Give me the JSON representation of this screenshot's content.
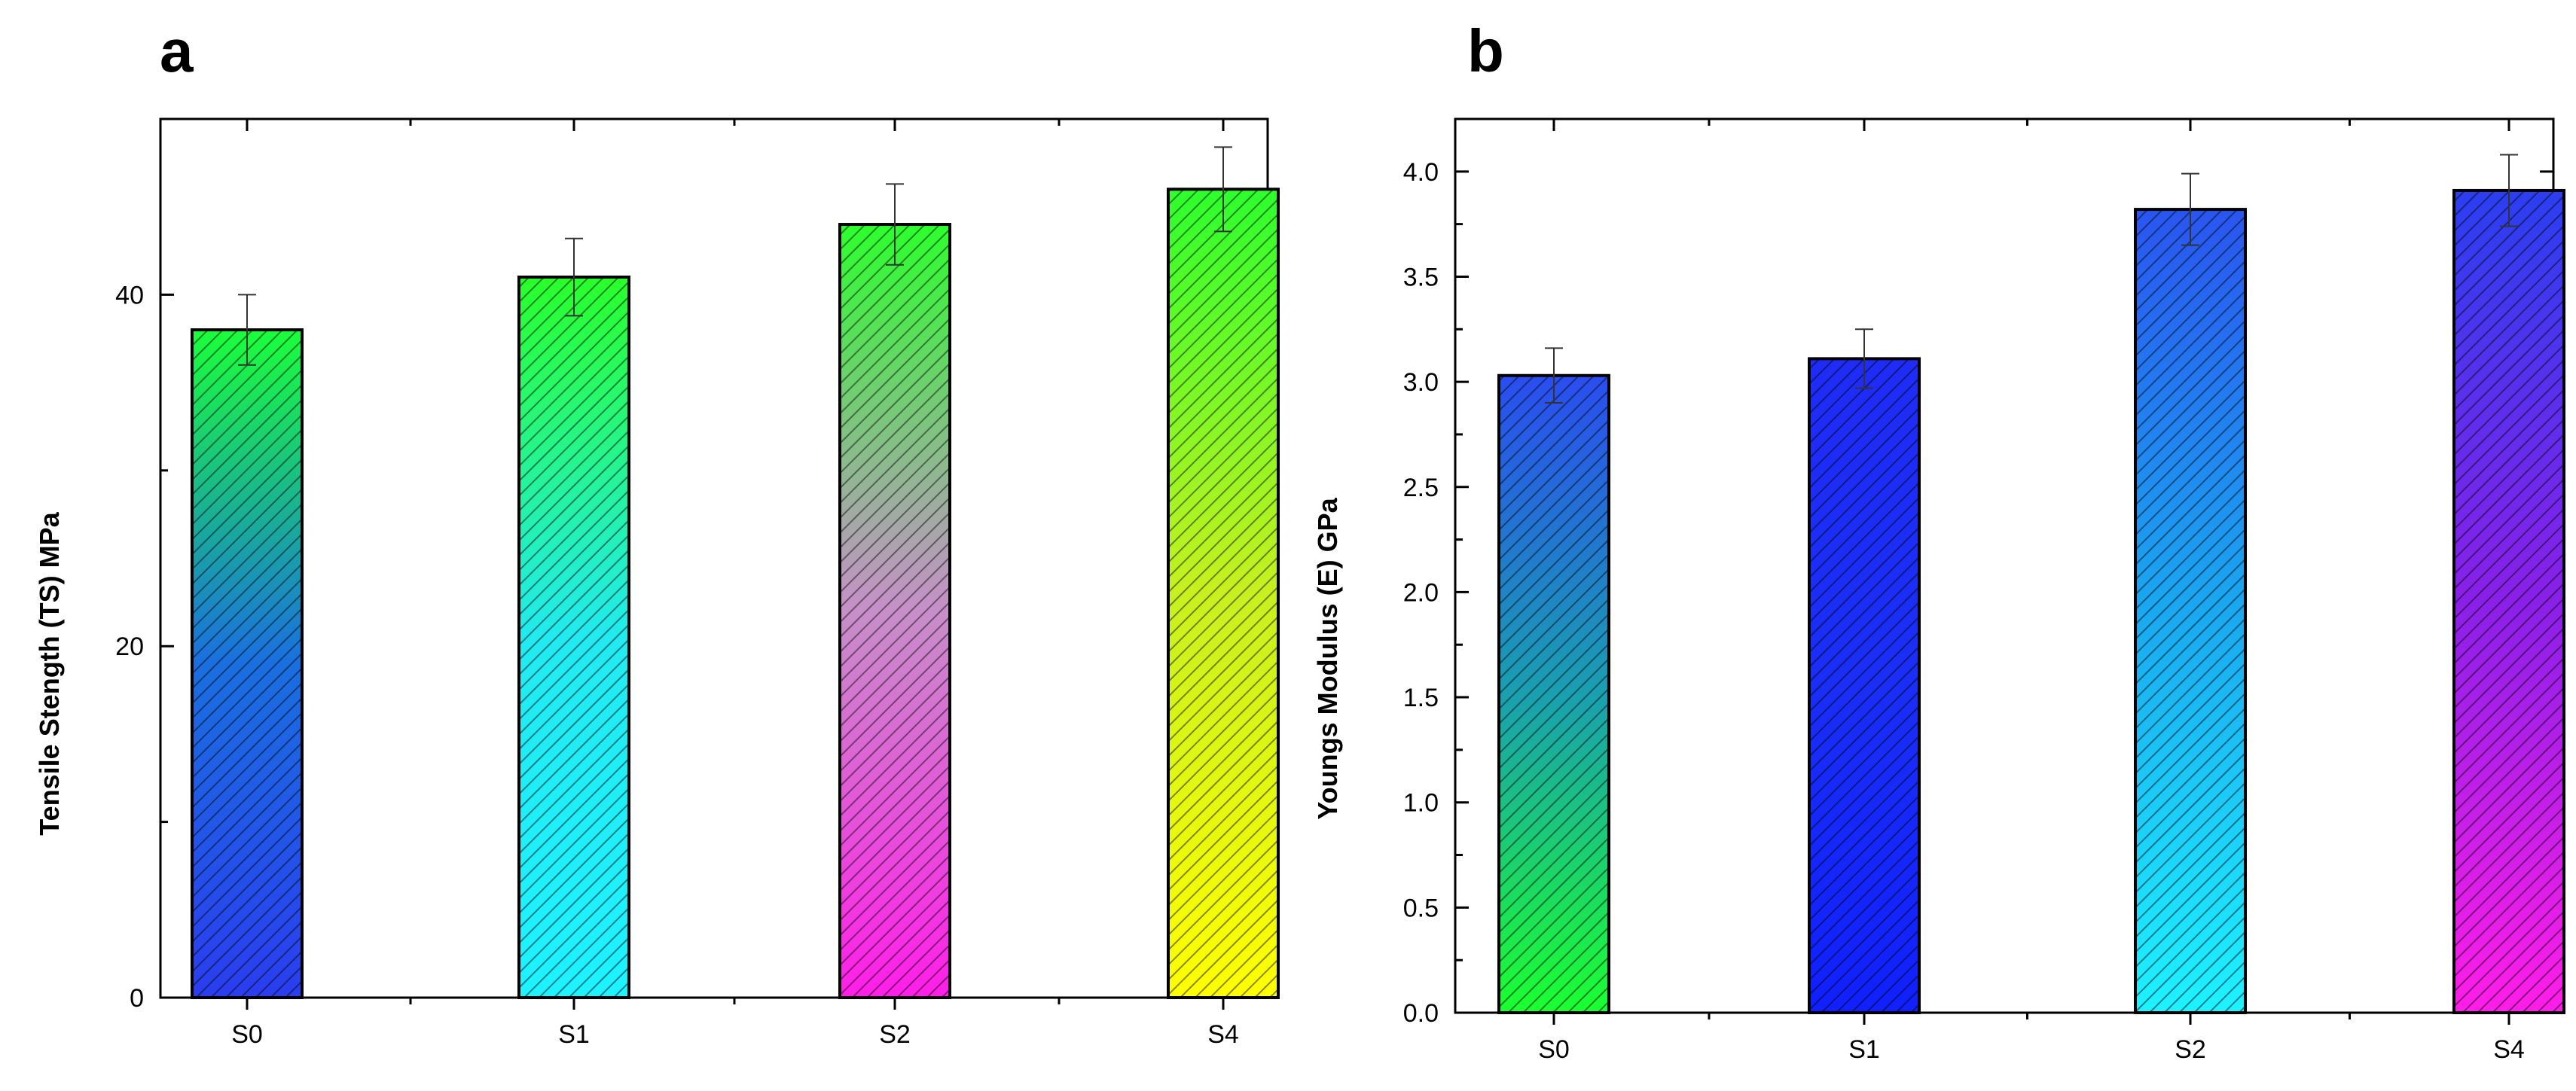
{
  "chart_data": [
    {
      "type": "bar",
      "panel": "a",
      "title": "",
      "xlabel": "",
      "ylabel": "Tensile Stength (TS) MPa",
      "categories": [
        "S0",
        "S1",
        "S2",
        "S4"
      ],
      "values": [
        38,
        41,
        44,
        46
      ],
      "errors": [
        2.0,
        2.2,
        2.3,
        2.4
      ],
      "ylim": [
        0,
        50
      ],
      "yticks": [
        0,
        20,
        40
      ],
      "ytick_labels": [
        "0",
        "20",
        "40"
      ],
      "bar_colors": [
        [
          "#1bff3a",
          "#1a6fe0",
          "#2a3df0"
        ],
        [
          "#2aff2a",
          "#22eaf0",
          "#1ef2ff"
        ],
        [
          "#2dff2d",
          "#c78fc9",
          "#ff1ee8"
        ],
        [
          "#2dff2d",
          "#c8f020",
          "#ffff00"
        ]
      ]
    },
    {
      "type": "bar",
      "panel": "b",
      "title": "",
      "xlabel": "",
      "ylabel": "Youngs Modulus (E) GPa",
      "categories": [
        "S0",
        "S1",
        "S2",
        "S4"
      ],
      "values": [
        3.03,
        3.11,
        3.82,
        3.91
      ],
      "errors": [
        0.13,
        0.14,
        0.17,
        0.17
      ],
      "ylim": [
        0.0,
        4.25
      ],
      "yticks": [
        0.0,
        0.5,
        1.0,
        1.5,
        2.0,
        2.5,
        3.0,
        3.5,
        4.0
      ],
      "ytick_labels": [
        "0.0",
        "0.5",
        "1.0",
        "1.5",
        "2.0",
        "2.5",
        "3.0",
        "3.5",
        "4.0"
      ],
      "bar_colors": [
        [
          "#2a4df0",
          "#1a9fb0",
          "#1cff30"
        ],
        [
          "#1f2cf5",
          "#1a2ef5",
          "#1020ff"
        ],
        [
          "#2a55f0",
          "#1aa8f0",
          "#1ef2ff"
        ],
        [
          "#2a3ff0",
          "#8a20e8",
          "#ff1ee8"
        ]
      ]
    }
  ]
}
